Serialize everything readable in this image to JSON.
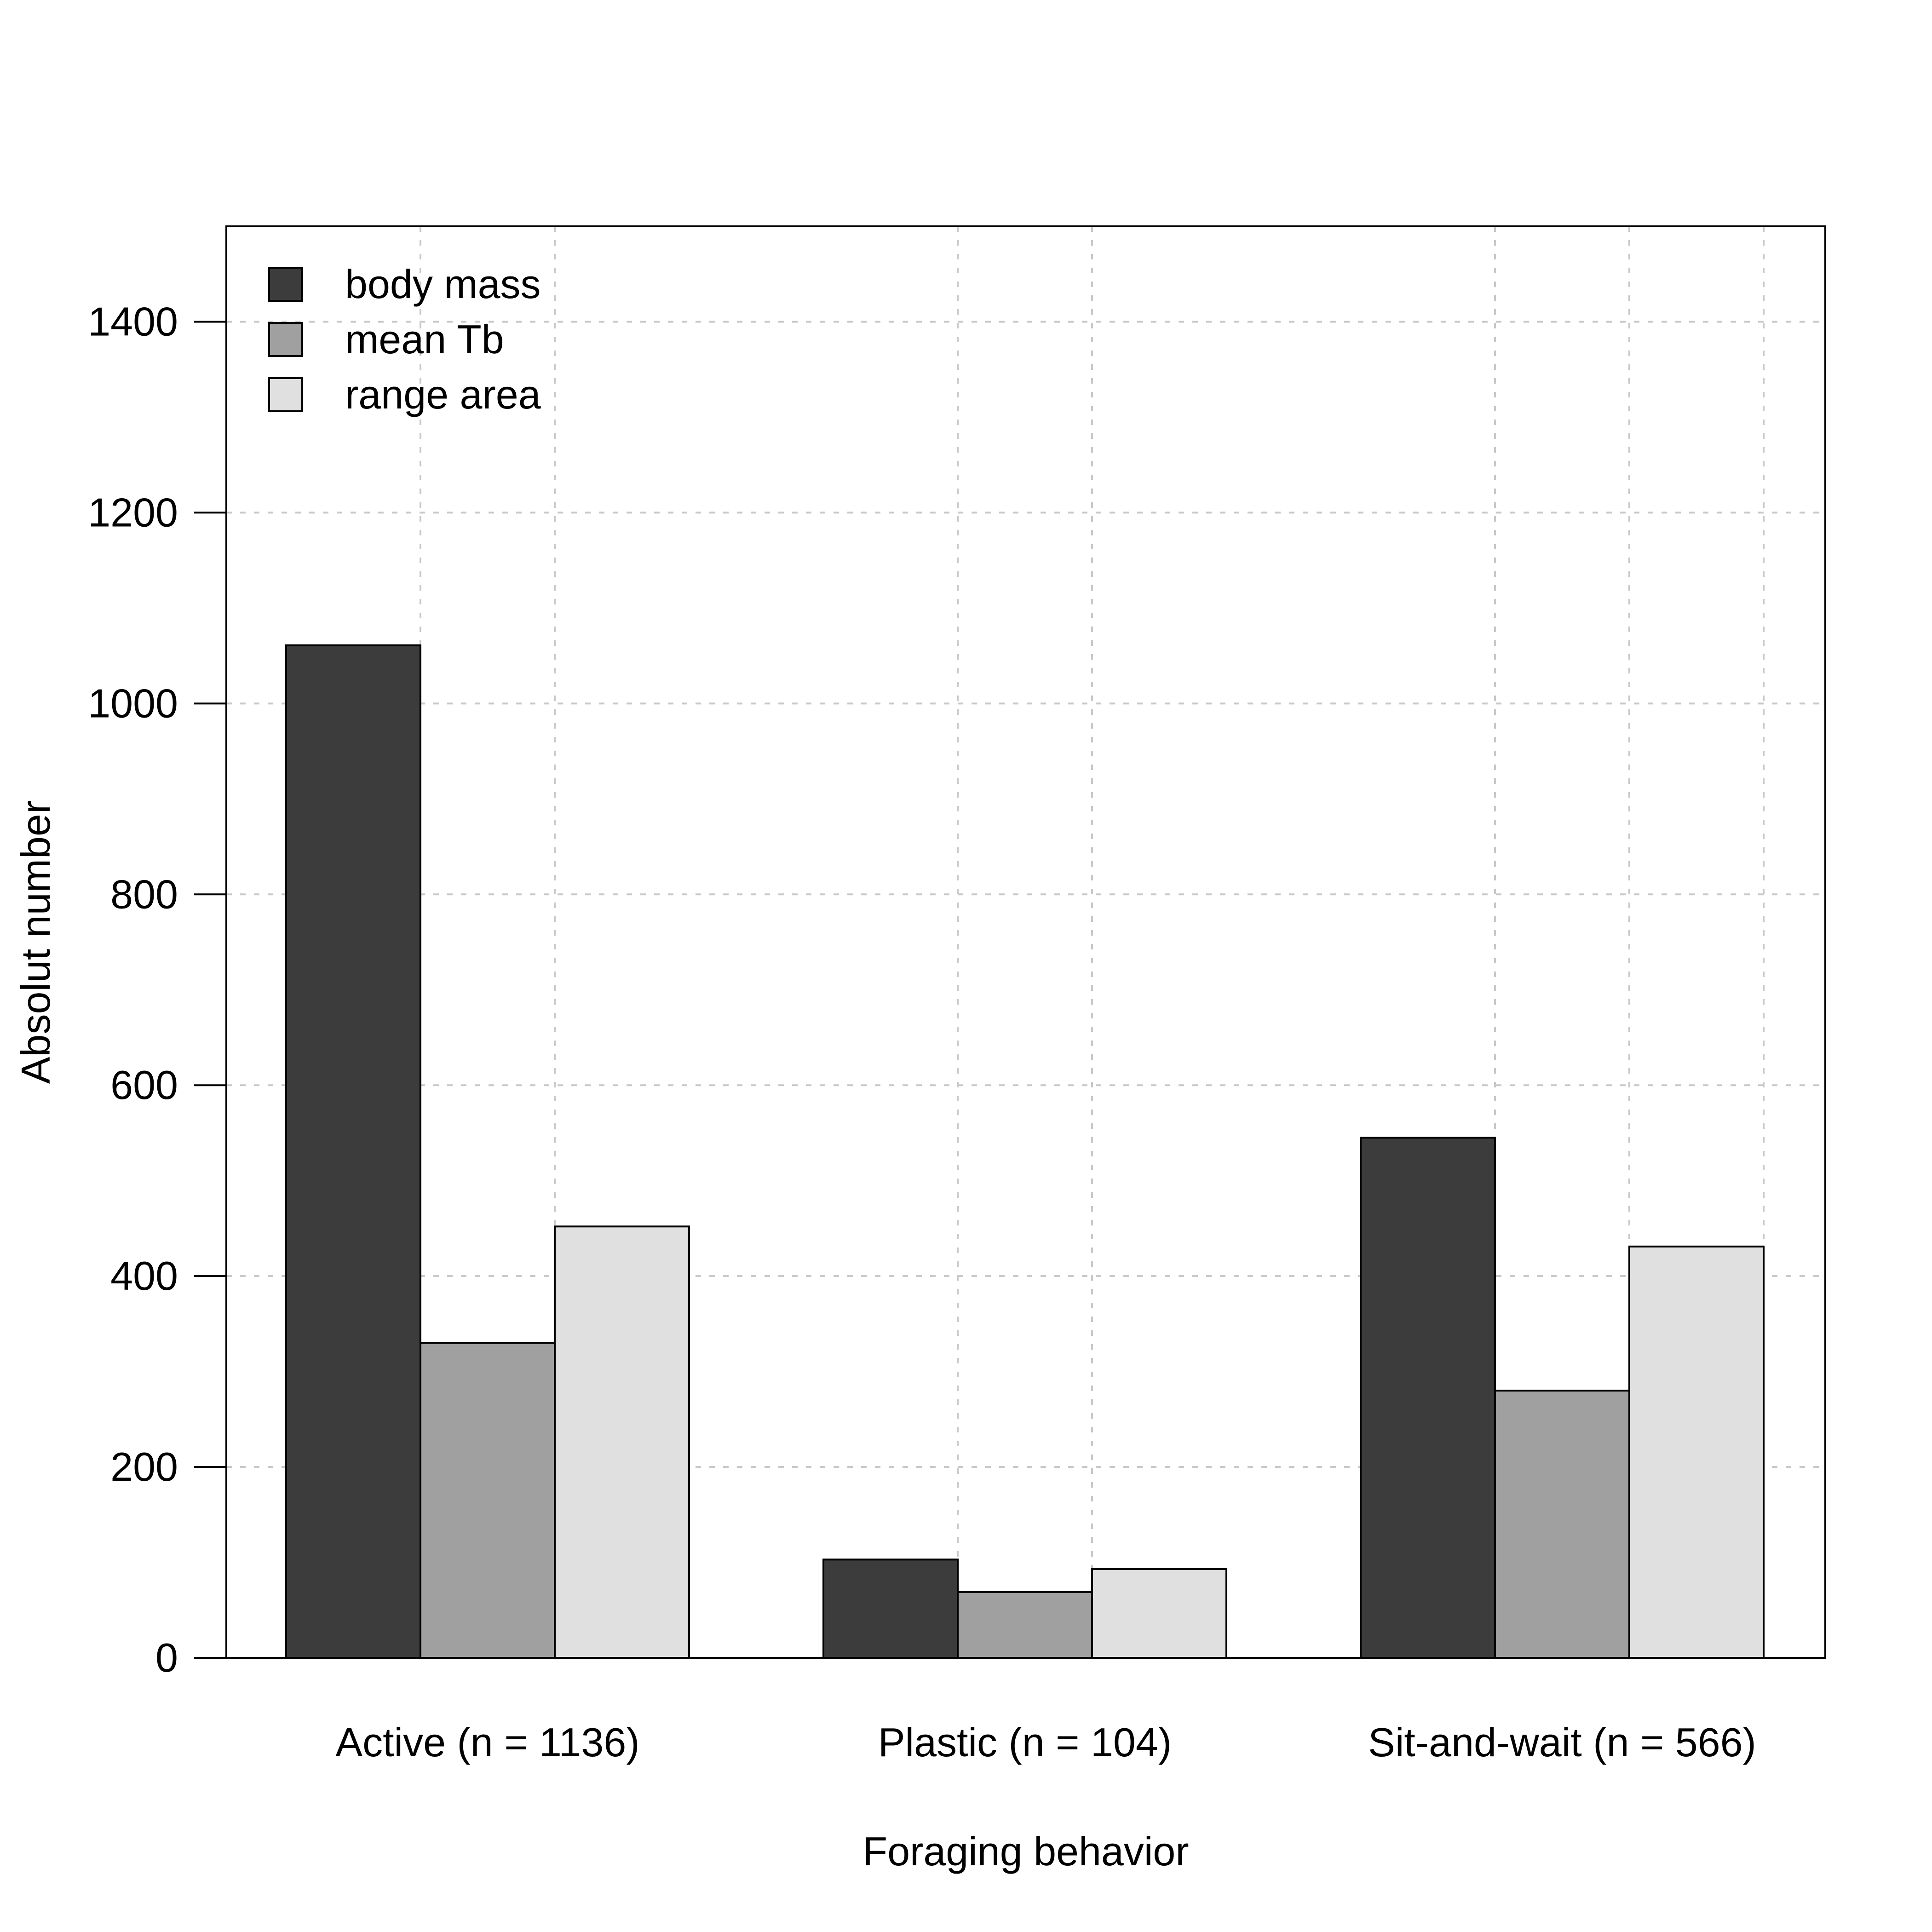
{
  "chart_data": {
    "type": "bar",
    "title": "",
    "xlabel": "Foraging behavior",
    "ylabel": "Absolut number",
    "categories": [
      "Active (n = 1136)",
      "Plastic (n = 104)",
      "Sit-and-wait (n = 566)"
    ],
    "series": [
      {
        "name": "body mass",
        "values": [
          1061,
          103,
          545
        ],
        "color": "#3c3c3c"
      },
      {
        "name": "mean Tb",
        "values": [
          330,
          69,
          280
        ],
        "color": "#a0a0a0"
      },
      {
        "name": "range area",
        "values": [
          452,
          93,
          431
        ],
        "color": "#e0e0e0"
      }
    ],
    "ylim": [
      0,
      1500
    ],
    "yticks": [
      0,
      200,
      400,
      600,
      800,
      1000,
      1200,
      1400
    ],
    "ytick_labels": [
      "0",
      "200",
      "400",
      "600",
      "800",
      "1000",
      "1200",
      "1400"
    ],
    "grid": true,
    "legend_position": "top-left"
  }
}
